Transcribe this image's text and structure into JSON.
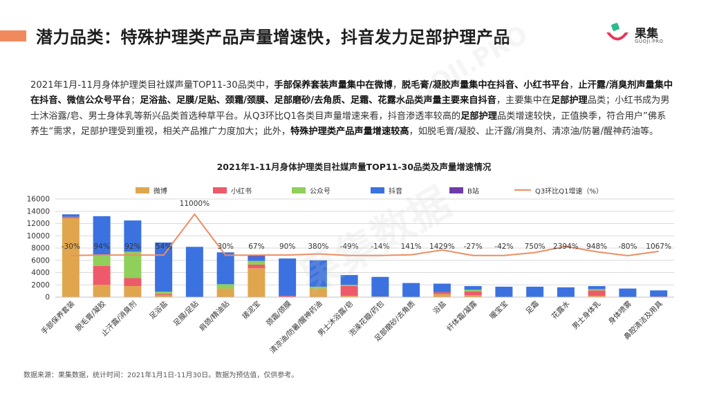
{
  "header": {
    "title": "潜力品类：特殊护理类产品声量增速快，抖音发力足部护理产品",
    "logo_text": "果集",
    "logo_sub": "GUOJI.PRO"
  },
  "description": {
    "p1": "2021年1月-11月身体护理类目社媒声量TOP11-30品类中，",
    "b1": "手部保养套装声量集中在微博",
    "p2": "，",
    "b2": "脱毛膏/凝胶声量集中在抖音、小红书平台",
    "p3": "，",
    "b3": "止汗露/消臭剂声量集中在抖音、微信公众号平台",
    "p4": "；",
    "b4": "足浴盐、足膜/足贴、颈霜/颈膜、足部磨砂/去角质、足霜、花露水品类声量主要来自抖音",
    "p5": "，主要集中在",
    "b5": "足部护理",
    "p6": "品类；小红书成为男士沐浴露/皂、男士身体乳等新兴品类首选种草平台。从Q3环比Q1各类目声量增速来看，抖音渗透率较高的",
    "b6": "足部护理",
    "p7": "品类增速较快，正值换季，符合用户”佛系养生“需求，足部护理受到重视，相关产品推广力度加大；此外，",
    "b7": "特殊护理类产品声量增速较高",
    "p8": "，如脱毛膏/凝胶、止汗露/消臭剂、清凉油/防暑/醒神药油等。"
  },
  "source": "数据来源：果集数据，统计时间：2021年1月1日-11月30日。数据为预估值，仅供参考。",
  "watermarks": [
    "果集数据",
    "GUOJI.PRO"
  ],
  "chart_data": {
    "type": "bar",
    "stacked": true,
    "title": "2021年1-11月身体护理类目社媒声量TOP11-30品类及声量增速情况",
    "categories": [
      "手部保养套装",
      "脱毛膏/凝胶",
      "止汗露/消臭剂",
      "足浴盐",
      "足膜/足贴",
      "肩颈/精油贴",
      "搓泥宝",
      "颈霜/颈膜",
      "清凉油/防暑/醒神药油",
      "男士沐浴露/皂",
      "泡澡花瓣/药包",
      "足部磨砂/去角质",
      "浴盐",
      "纤体霜/凝露",
      "暖宝宝",
      "足霜",
      "花露水",
      "男士身体乳",
      "身体喷雾",
      "鼻腔清洁及用具"
    ],
    "ylim": [
      0,
      16000
    ],
    "yticks": [
      0,
      2000,
      4000,
      6000,
      8000,
      10000,
      12000,
      14000,
      16000
    ],
    "grid": true,
    "legend_position": "top",
    "series": [
      {
        "name": "微博",
        "color": "#e0a64e",
        "values": [
          12900,
          2000,
          1800,
          300,
          0,
          1400,
          4700,
          0,
          1400,
          200,
          100,
          0,
          500,
          300,
          0,
          0,
          0,
          200,
          0,
          0
        ]
      },
      {
        "name": "小红书",
        "color": "#ef5a6a",
        "values": [
          200,
          3100,
          1300,
          200,
          0,
          0,
          600,
          200,
          0,
          1600,
          0,
          0,
          300,
          600,
          0,
          0,
          0,
          900,
          0,
          100
        ]
      },
      {
        "name": "公众号",
        "color": "#8fcf5a",
        "values": [
          0,
          1700,
          4300,
          400,
          0,
          700,
          600,
          0,
          300,
          200,
          0,
          0,
          0,
          300,
          0,
          0,
          0,
          200,
          0,
          0
        ]
      },
      {
        "name": "抖音",
        "color": "#3b72e0",
        "values": [
          400,
          6400,
          5100,
          8000,
          8200,
          5200,
          700,
          6100,
          4300,
          1600,
          3200,
          2300,
          1400,
          600,
          1700,
          1700,
          1600,
          500,
          1400,
          1000
        ]
      },
      {
        "name": "B站",
        "color": "#6f3ba8",
        "values": [
          0,
          0,
          0,
          0,
          0,
          0,
          150,
          0,
          0,
          0,
          0,
          0,
          0,
          0,
          0,
          0,
          0,
          0,
          0,
          0
        ]
      }
    ],
    "growth_series": {
      "name": "Q3环比Q1增速（%）",
      "color": "#ee8c60",
      "values": [
        -30,
        94,
        92,
        54,
        11000,
        30,
        67,
        90,
        380,
        -49,
        -14,
        141,
        1429,
        -27,
        -42,
        750,
        2394,
        948,
        -80,
        1067
      ],
      "labels": [
        "-30%",
        "94%",
        "92%",
        "54%",
        "11000%",
        "30%",
        "67%",
        "90%",
        "380%",
        "-49%",
        "-14%",
        "141%",
        "1429%",
        "-27%",
        "-42%",
        "750%",
        "2394%",
        "948%",
        "-80%",
        "1067%"
      ]
    }
  }
}
